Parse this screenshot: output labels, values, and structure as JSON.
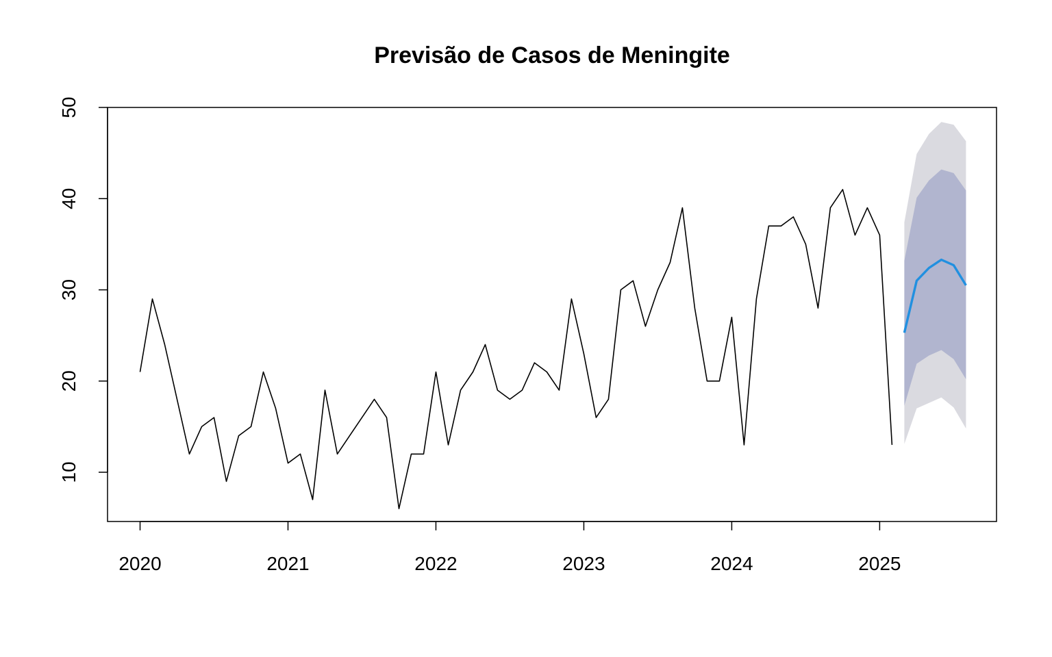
{
  "chart_data": {
    "type": "line",
    "title": "Previsão de Casos de Meningite",
    "xlabel": "",
    "ylabel": "",
    "xlim": [
      2019.78,
      2025.79
    ],
    "ylim": [
      4.6,
      50
    ],
    "x_ticks": [
      2020,
      2021,
      2022,
      2023,
      2024,
      2025
    ],
    "y_ticks": [
      10,
      20,
      30,
      40,
      50
    ],
    "grid": false,
    "legend": "none",
    "series": [
      {
        "role": "observed",
        "color": "#000000",
        "x": [
          "2020-01",
          "2020-02",
          "2020-03",
          "2020-04",
          "2020-05",
          "2020-06",
          "2020-07",
          "2020-08",
          "2020-09",
          "2020-10",
          "2020-11",
          "2020-12",
          "2021-01",
          "2021-02",
          "2021-03",
          "2021-04",
          "2021-05",
          "2021-06",
          "2021-07",
          "2021-08",
          "2021-09",
          "2021-10",
          "2021-11",
          "2021-12",
          "2022-01",
          "2022-02",
          "2022-03",
          "2022-04",
          "2022-05",
          "2022-06",
          "2022-07",
          "2022-08",
          "2022-09",
          "2022-10",
          "2022-11",
          "2022-12",
          "2023-01",
          "2023-02",
          "2023-03",
          "2023-04",
          "2023-05",
          "2023-06",
          "2023-07",
          "2023-08",
          "2023-09",
          "2023-10",
          "2023-11",
          "2023-12",
          "2024-01",
          "2024-02",
          "2024-03",
          "2024-04",
          "2024-05",
          "2024-06",
          "2024-07",
          "2024-08",
          "2024-09",
          "2024-10",
          "2024-11",
          "2024-12",
          "2025-01",
          "2025-02"
        ],
        "values": [
          21,
          29,
          24,
          18,
          12,
          15,
          16,
          9,
          14,
          15,
          21,
          17,
          11,
          12,
          7,
          19,
          12,
          14,
          16,
          18,
          16,
          6,
          12,
          12,
          21,
          13,
          19,
          21,
          24,
          19,
          18,
          19,
          22,
          21,
          19,
          29,
          23,
          16,
          18,
          30,
          31,
          26,
          30,
          33,
          39,
          28,
          20,
          20,
          27,
          13,
          29,
          37,
          37,
          38,
          35,
          28,
          39,
          41,
          36,
          39,
          36,
          13
        ]
      },
      {
        "role": "forecast",
        "color": "#2190e0",
        "x": [
          "2025-03",
          "2025-04",
          "2025-05",
          "2025-06",
          "2025-07",
          "2025-08"
        ],
        "values": [
          25.3,
          31.0,
          32.4,
          33.3,
          32.7,
          30.5
        ],
        "lo80": [
          17.3,
          21.9,
          22.8,
          23.4,
          22.4,
          20.2
        ],
        "hi80": [
          33.2,
          40.1,
          42.0,
          43.2,
          42.8,
          40.9
        ],
        "lo95": [
          13.1,
          17.0,
          17.6,
          18.2,
          17.1,
          14.8
        ],
        "hi95": [
          37.4,
          44.9,
          47.1,
          48.4,
          48.1,
          46.3
        ]
      }
    ],
    "colors": {
      "band95": "#dadae0",
      "band80": "#b1b5cf",
      "observed": "#000000",
      "forecast": "#2190e0"
    }
  }
}
